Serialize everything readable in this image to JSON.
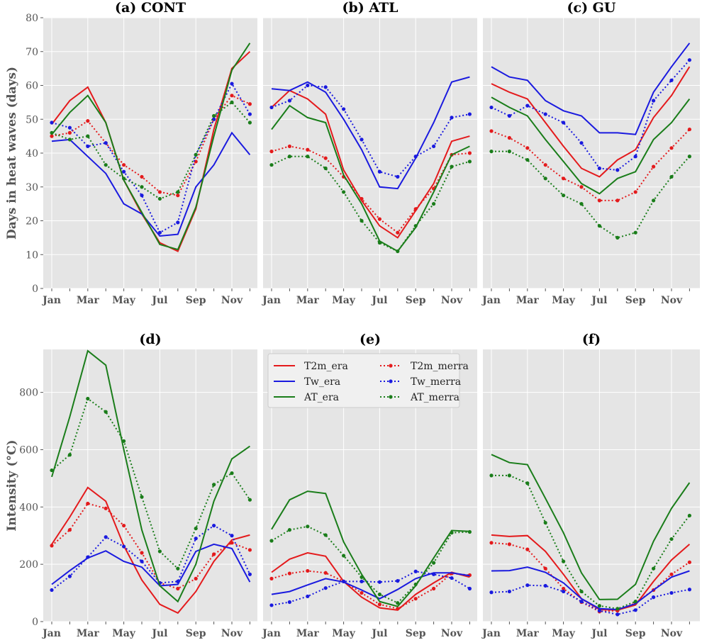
{
  "chart_data": [
    {
      "type": "line",
      "title": "(a) CONT",
      "ylabel": "Days in heat waves (days)",
      "ylim": [
        0,
        80
      ],
      "yticks": [
        0,
        10,
        20,
        30,
        40,
        50,
        60,
        70,
        80
      ],
      "xticklabels": [
        "Jan",
        "Mar",
        "May",
        "Jul",
        "Sep",
        "Nov"
      ],
      "series": [
        {
          "name": "T2m_era",
          "color": "#e41a1c",
          "style": "solid",
          "values": [
            48.5,
            55.5,
            59.5,
            49,
            32,
            22,
            13.5,
            11,
            23.5,
            47,
            65,
            70
          ]
        },
        {
          "name": "T2m_merra",
          "color": "#e41a1c",
          "style": "dotted",
          "values": [
            45,
            46,
            49.5,
            43,
            36.5,
            33,
            28.5,
            27.5,
            37.5,
            50,
            57,
            54.5
          ]
        },
        {
          "name": "Tw_era",
          "color": "#1a1adf",
          "style": "solid",
          "values": [
            43.5,
            44,
            39,
            34,
            25,
            22,
            15.5,
            16,
            30,
            36.5,
            46,
            39.5
          ]
        },
        {
          "name": "Tw_merra",
          "color": "#1a1adf",
          "style": "dotted",
          "values": [
            49,
            47.5,
            42,
            43,
            34.5,
            27.5,
            16.5,
            19.5,
            39.5,
            50,
            60.5,
            51.5
          ]
        },
        {
          "name": "AT_era",
          "color": "#1a7d1a",
          "style": "solid",
          "values": [
            45.5,
            52,
            57,
            49,
            32,
            22.5,
            13,
            11.5,
            24,
            45,
            64.5,
            72.5
          ]
        },
        {
          "name": "AT_merra",
          "color": "#1a7d1a",
          "style": "dotted",
          "values": [
            46,
            44,
            45,
            36.5,
            32.5,
            30,
            26.5,
            28.5,
            39.5,
            51,
            55,
            49
          ]
        }
      ]
    },
    {
      "type": "line",
      "title": "(b) ATL",
      "ylim": [
        0,
        80
      ],
      "xticklabels": [
        "Jan",
        "Mar",
        "May",
        "Jul",
        "Sep",
        "Nov"
      ],
      "series": [
        {
          "name": "T2m_era",
          "color": "#e41a1c",
          "style": "solid",
          "values": [
            53.5,
            58.5,
            56,
            51.5,
            35,
            26,
            18.5,
            15,
            23,
            31,
            43.5,
            45
          ]
        },
        {
          "name": "T2m_merra",
          "color": "#e41a1c",
          "style": "dotted",
          "values": [
            40.5,
            42,
            41,
            38.5,
            33,
            26.5,
            20.5,
            16.5,
            23.5,
            29.5,
            39.5,
            40
          ]
        },
        {
          "name": "Tw_era",
          "color": "#1a1adf",
          "style": "solid",
          "values": [
            59,
            58.5,
            61,
            58,
            50,
            41,
            30,
            29.5,
            38.5,
            49,
            61,
            62.5
          ]
        },
        {
          "name": "Tw_merra",
          "color": "#1a1adf",
          "style": "dotted",
          "values": [
            53.5,
            55.5,
            60,
            59.5,
            53,
            44,
            34.5,
            33,
            39,
            42,
            50.5,
            51.5
          ]
        },
        {
          "name": "AT_era",
          "color": "#1a7d1a",
          "style": "solid",
          "values": [
            47,
            54,
            50.5,
            49,
            33.5,
            25,
            14,
            11,
            18,
            28.5,
            39.5,
            42
          ]
        },
        {
          "name": "AT_merra",
          "color": "#1a7d1a",
          "style": "dotted",
          "values": [
            36.5,
            39,
            39,
            35.5,
            28.5,
            20,
            13.5,
            11,
            18.5,
            25,
            36,
            37.5
          ]
        }
      ]
    },
    {
      "type": "line",
      "title": "(c) GU",
      "ylim": [
        0,
        80
      ],
      "xticklabels": [
        "Jan",
        "Mar",
        "May",
        "Jul",
        "Sep",
        "Nov"
      ],
      "series": [
        {
          "name": "T2m_era",
          "color": "#e41a1c",
          "style": "solid",
          "values": [
            60.5,
            58,
            56,
            49,
            42,
            35.5,
            33,
            38,
            41,
            50.5,
            57,
            65.5
          ]
        },
        {
          "name": "T2m_merra",
          "color": "#e41a1c",
          "style": "dotted",
          "values": [
            46.5,
            44.5,
            41.5,
            36.5,
            32.5,
            30,
            26,
            26,
            28.5,
            36,
            41.5,
            47
          ]
        },
        {
          "name": "Tw_era",
          "color": "#1a1adf",
          "style": "solid",
          "values": [
            65.5,
            62.5,
            61.5,
            55.5,
            52.5,
            51,
            46,
            46,
            45.5,
            58,
            65.5,
            72.5
          ]
        },
        {
          "name": "Tw_merra",
          "color": "#1a1adf",
          "style": "dotted",
          "values": [
            53.5,
            51,
            54,
            51.5,
            49,
            43,
            35.5,
            35,
            39,
            55.5,
            61.5,
            67.5
          ]
        },
        {
          "name": "AT_era",
          "color": "#1a7d1a",
          "style": "solid",
          "values": [
            56.5,
            53.5,
            51,
            44,
            37.5,
            31,
            28,
            32.5,
            34.5,
            44,
            49,
            56
          ]
        },
        {
          "name": "AT_merra",
          "color": "#1a7d1a",
          "style": "dotted",
          "values": [
            40.5,
            40.5,
            38,
            32.5,
            27.5,
            25,
            18.5,
            15,
            16.5,
            26,
            33,
            39
          ]
        }
      ]
    },
    {
      "type": "line",
      "title": "(d)",
      "ylabel": "Intensity (°C)",
      "ylim": [
        0,
        950
      ],
      "yticks": [
        0,
        200,
        400,
        600,
        800
      ],
      "xticklabels": [
        "Jan",
        "Mar",
        "May",
        "Jul",
        "Sep",
        "Nov"
      ],
      "series": [
        {
          "name": "T2m_era",
          "color": "#e41a1c",
          "style": "solid",
          "values": [
            270,
            365,
            468,
            420,
            265,
            145,
            60,
            30,
            105,
            210,
            285,
            302
          ]
        },
        {
          "name": "T2m_merra",
          "color": "#e41a1c",
          "style": "dotted",
          "values": [
            265,
            320,
            412,
            395,
            335,
            240,
            135,
            115,
            150,
            235,
            275,
            250
          ]
        },
        {
          "name": "Tw_era",
          "color": "#1a1adf",
          "style": "solid",
          "values": [
            130,
            178,
            222,
            247,
            210,
            190,
            125,
            130,
            245,
            270,
            255,
            138
          ]
        },
        {
          "name": "Tw_merra",
          "color": "#1a1adf",
          "style": "dotted",
          "values": [
            110,
            158,
            225,
            295,
            262,
            210,
            135,
            140,
            290,
            335,
            300,
            165
          ]
        },
        {
          "name": "AT_era",
          "color": "#1a7d1a",
          "style": "solid",
          "values": [
            505,
            715,
            945,
            895,
            600,
            320,
            125,
            70,
            200,
            420,
            568,
            612
          ]
        },
        {
          "name": "AT_merra",
          "color": "#1a7d1a",
          "style": "dotted",
          "values": [
            528,
            582,
            778,
            732,
            630,
            435,
            245,
            185,
            325,
            478,
            518,
            425
          ]
        }
      ]
    },
    {
      "type": "line",
      "title": "(e)",
      "ylim": [
        0,
        950
      ],
      "xticklabels": [
        "Jan",
        "Mar",
        "May",
        "Jul",
        "Sep",
        "Nov"
      ],
      "legend_position": "upper",
      "legend": [
        "T2m_era",
        "T2m_merra",
        "Tw_era",
        "Tw_merra",
        "AT_era",
        "AT_merra"
      ],
      "series": [
        {
          "name": "T2m_era",
          "color": "#e41a1c",
          "style": "solid",
          "values": [
            172,
            218,
            240,
            228,
            140,
            85,
            48,
            40,
            95,
            135,
            172,
            155
          ]
        },
        {
          "name": "T2m_merra",
          "color": "#e41a1c",
          "style": "dotted",
          "values": [
            150,
            168,
            177,
            170,
            140,
            100,
            60,
            45,
            80,
            115,
            168,
            162
          ]
        },
        {
          "name": "Tw_era",
          "color": "#1a1adf",
          "style": "solid",
          "values": [
            95,
            105,
            128,
            150,
            138,
            110,
            80,
            112,
            150,
            170,
            170,
            160
          ]
        },
        {
          "name": "Tw_merra",
          "color": "#1a1adf",
          "style": "dotted",
          "values": [
            57,
            68,
            88,
            117,
            140,
            140,
            138,
            142,
            175,
            165,
            152,
            115
          ]
        },
        {
          "name": "AT_era",
          "color": "#1a7d1a",
          "style": "solid",
          "values": [
            322,
            425,
            455,
            447,
            278,
            165,
            70,
            53,
            125,
            222,
            318,
            315
          ]
        },
        {
          "name": "AT_merra",
          "color": "#1a7d1a",
          "style": "dotted",
          "values": [
            282,
            320,
            332,
            302,
            230,
            155,
            95,
            65,
            130,
            205,
            310,
            313
          ]
        }
      ]
    },
    {
      "type": "line",
      "title": "(f)",
      "ylim": [
        0,
        950
      ],
      "xticklabels": [
        "Jan",
        "Mar",
        "May",
        "Jul",
        "Sep",
        "Nov"
      ],
      "series": [
        {
          "name": "T2m_era",
          "color": "#e41a1c",
          "style": "solid",
          "values": [
            302,
            297,
            300,
            245,
            165,
            80,
            42,
            40,
            58,
            140,
            215,
            270
          ]
        },
        {
          "name": "T2m_merra",
          "color": "#e41a1c",
          "style": "dotted",
          "values": [
            275,
            270,
            252,
            185,
            115,
            68,
            35,
            38,
            65,
            110,
            165,
            207
          ]
        },
        {
          "name": "Tw_era",
          "color": "#1a1adf",
          "style": "solid",
          "values": [
            177,
            178,
            190,
            172,
            135,
            80,
            45,
            42,
            62,
            110,
            155,
            177
          ]
        },
        {
          "name": "Tw_merra",
          "color": "#1a1adf",
          "style": "dotted",
          "values": [
            102,
            105,
            127,
            125,
            105,
            70,
            38,
            25,
            40,
            85,
            100,
            112
          ]
        },
        {
          "name": "AT_era",
          "color": "#1a7d1a",
          "style": "solid",
          "values": [
            583,
            555,
            548,
            430,
            310,
            170,
            77,
            78,
            130,
            280,
            395,
            485
          ]
        },
        {
          "name": "AT_merra",
          "color": "#1a7d1a",
          "style": "dotted",
          "values": [
            510,
            510,
            483,
            345,
            210,
            105,
            55,
            45,
            70,
            185,
            288,
            370
          ]
        }
      ]
    }
  ]
}
